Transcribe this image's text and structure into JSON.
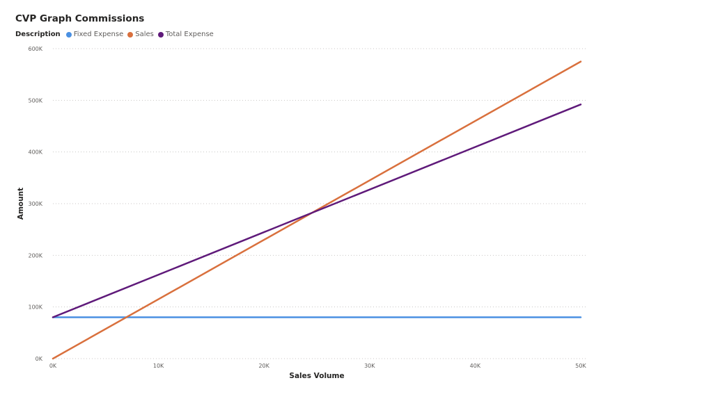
{
  "chart_data": {
    "type": "line",
    "title": "CVP Graph Commissions",
    "legend_title": "Description",
    "legend_position": "top-left",
    "xlabel": "Sales Volume",
    "ylabel": "Amount",
    "x": [
      0,
      50000
    ],
    "xlim": [
      0,
      50000
    ],
    "ylim": [
      0,
      600000
    ],
    "x_ticks": [
      {
        "value": 0,
        "label": "0K"
      },
      {
        "value": 10000,
        "label": "10K"
      },
      {
        "value": 20000,
        "label": "20K"
      },
      {
        "value": 30000,
        "label": "30K"
      },
      {
        "value": 40000,
        "label": "40K"
      },
      {
        "value": 50000,
        "label": "50K"
      }
    ],
    "y_ticks": [
      {
        "value": 0,
        "label": "0K"
      },
      {
        "value": 100000,
        "label": "100K"
      },
      {
        "value": 200000,
        "label": "200K"
      },
      {
        "value": 300000,
        "label": "300K"
      },
      {
        "value": 400000,
        "label": "400K"
      },
      {
        "value": 500000,
        "label": "500K"
      },
      {
        "value": 600000,
        "label": "600K"
      }
    ],
    "grid": "horizontal-dotted",
    "series": [
      {
        "name": "Fixed Expense",
        "color": "#4a90e2",
        "values": [
          80000,
          80000
        ]
      },
      {
        "name": "Sales",
        "color": "#d9703d",
        "values": [
          0,
          575000
        ]
      },
      {
        "name": "Total Expense",
        "color": "#5f1a7a",
        "values": [
          80000,
          492000
        ]
      }
    ]
  }
}
